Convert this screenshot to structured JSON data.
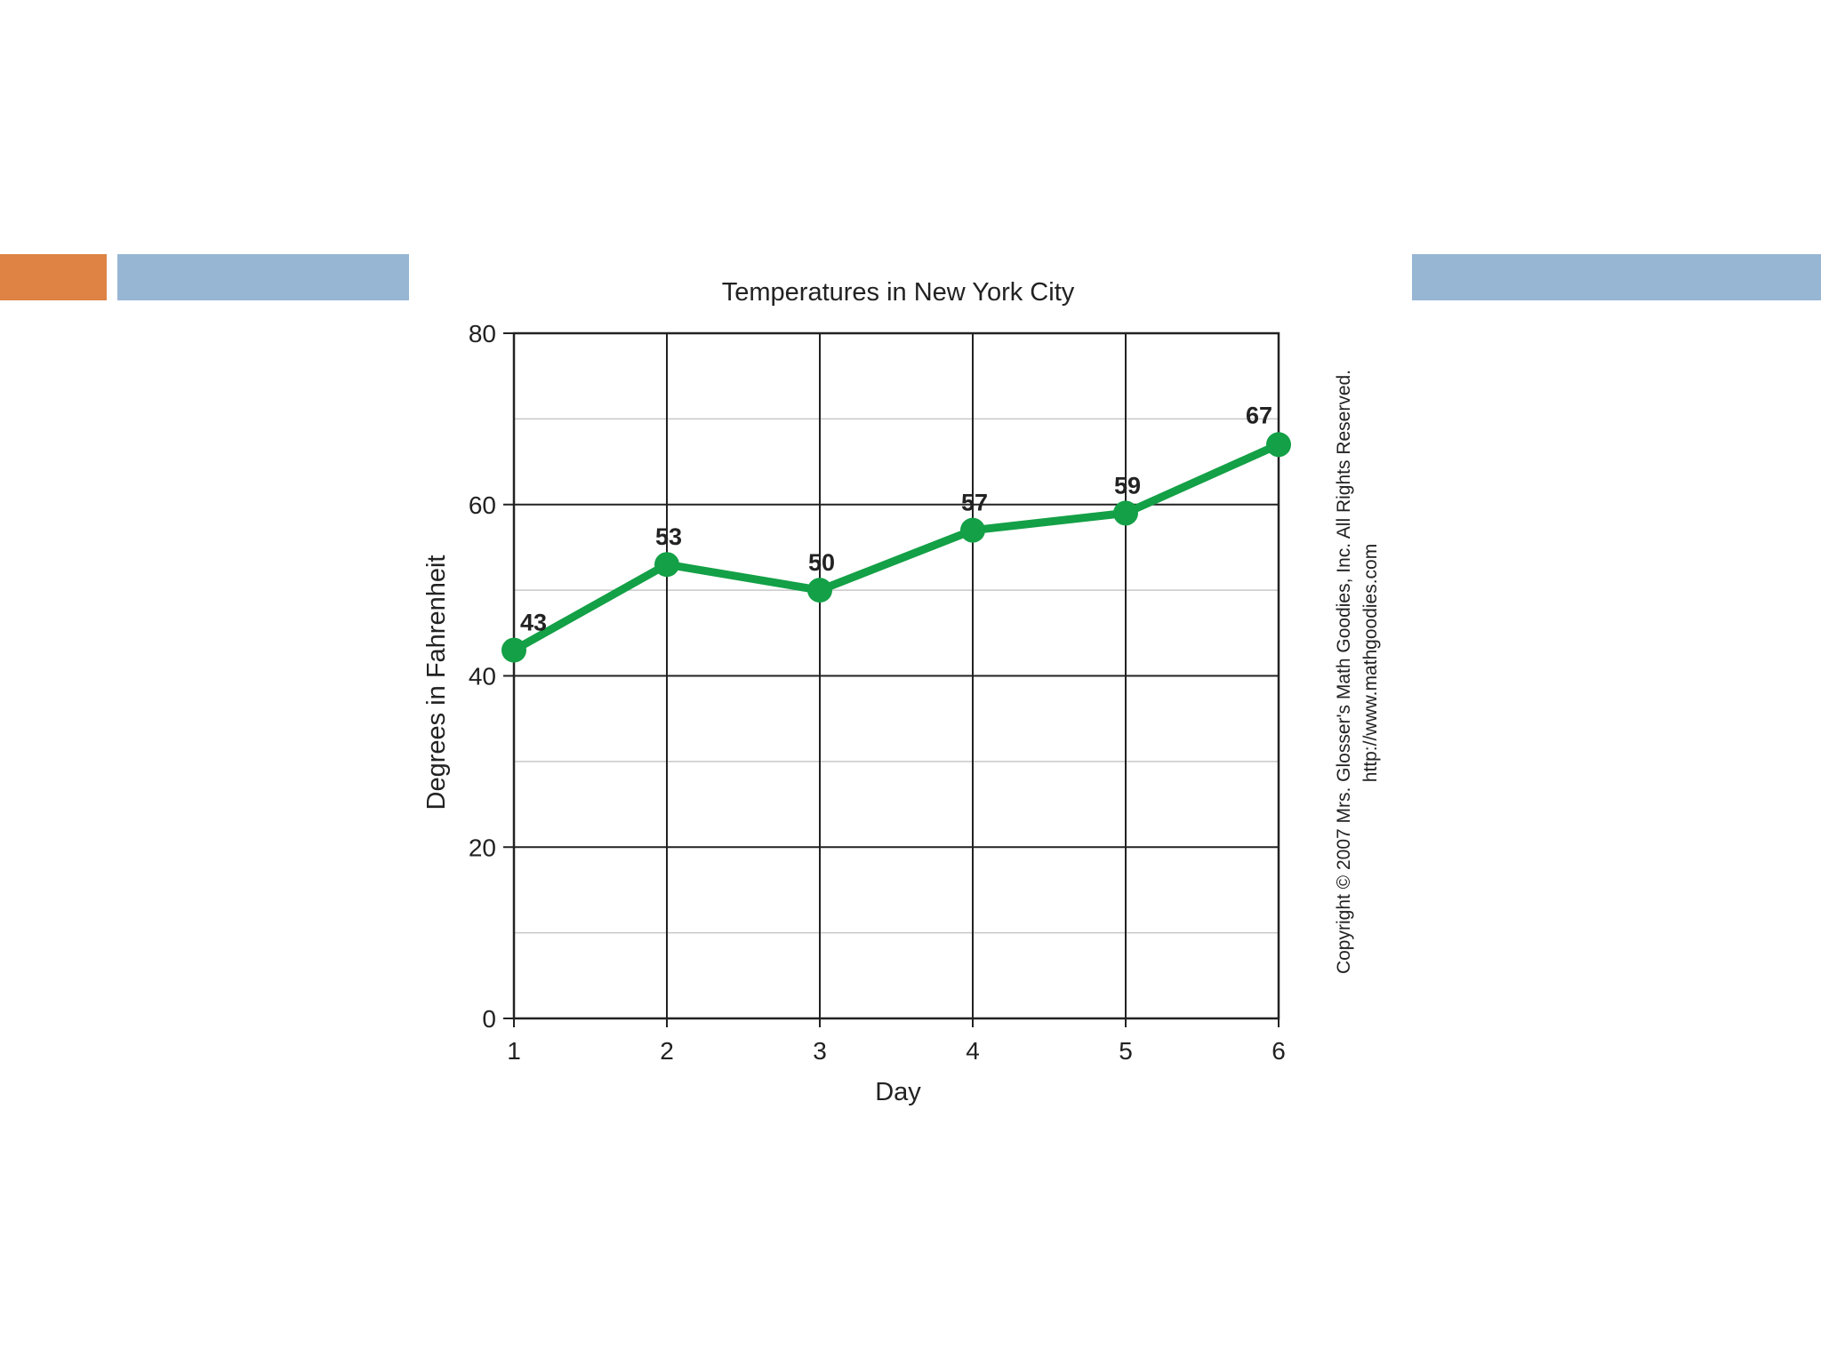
{
  "colors": {
    "accent_orange": "#DE8344",
    "accent_blue": "#97B6D3",
    "line_green": "#13A046",
    "grid_major": "#222222",
    "grid_minor": "#C8C8C8",
    "text": "#222222"
  },
  "copyright": {
    "line1": "Copyright © 2007 Mrs. Glosser's Math Goodies, Inc. All Rights Reserved.",
    "line2": "http://www.mathgoodies.com"
  },
  "chart_data": {
    "type": "line",
    "title": "Temperatures in New York City",
    "xlabel": "Day",
    "ylabel": "Degrees in Fahrenheit",
    "x": [
      1,
      2,
      3,
      4,
      5,
      6
    ],
    "x_tick_labels": [
      "1",
      "2",
      "3",
      "4",
      "5",
      "6"
    ],
    "y_ticks": [
      0,
      20,
      40,
      60,
      80
    ],
    "y_tick_labels": [
      "0",
      "20",
      "40",
      "60",
      "80"
    ],
    "ylim": [
      0,
      80
    ],
    "xlim": [
      1,
      6
    ],
    "grid": true,
    "minor_grid_step": 10,
    "series": [
      {
        "values": [
          43,
          53,
          50,
          57,
          59,
          67
        ],
        "data_labels": [
          "43",
          "53",
          "50",
          "57",
          "59",
          "67"
        ]
      }
    ]
  }
}
